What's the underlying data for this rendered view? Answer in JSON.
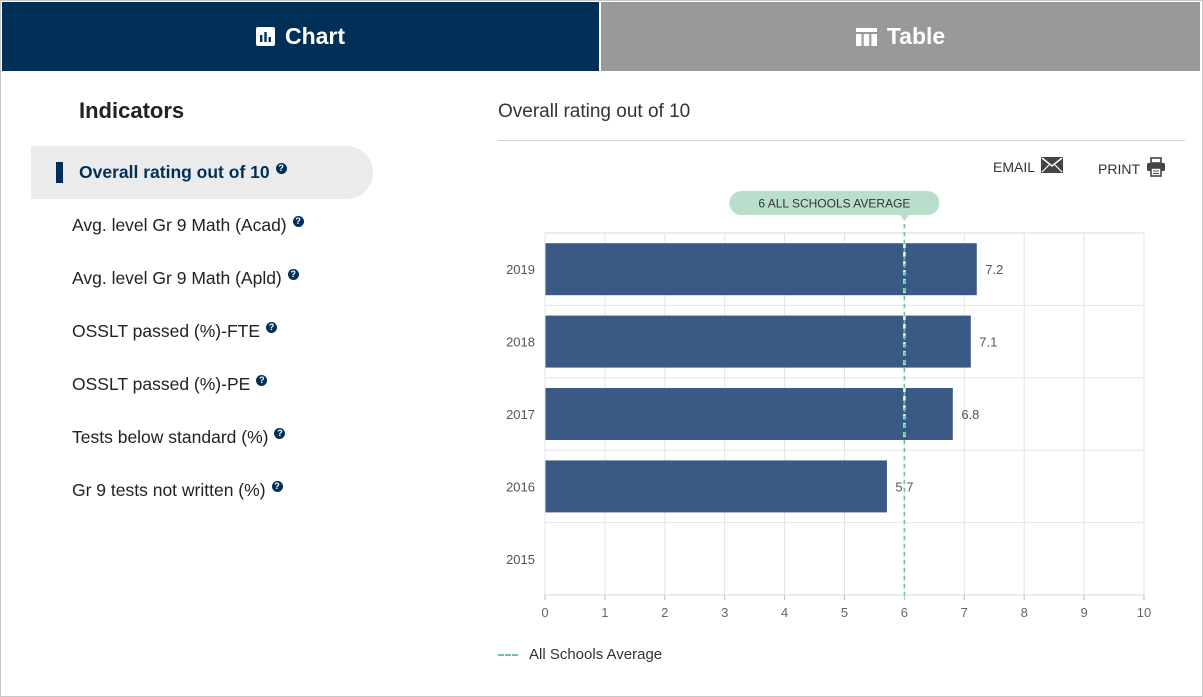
{
  "tabs": {
    "chart": {
      "label": "Chart",
      "icon": "bar-chart-icon"
    },
    "table": {
      "label": "Table",
      "icon": "table-icon"
    }
  },
  "indicators": {
    "title": "Indicators",
    "items": [
      {
        "label": "Overall rating out of 10",
        "active": true
      },
      {
        "label": "Avg. level Gr 9 Math (Acad)",
        "active": false
      },
      {
        "label": "Avg. level Gr 9 Math (Apld)",
        "active": false
      },
      {
        "label": "OSSLT passed (%)-FTE",
        "active": false
      },
      {
        "label": "OSSLT passed (%)-PE",
        "active": false
      },
      {
        "label": "Tests below standard (%)",
        "active": false
      },
      {
        "label": "Gr 9 tests not written (%)",
        "active": false
      }
    ],
    "help_icon": "question-circle-icon"
  },
  "panel": {
    "title": "Overall rating out of 10",
    "email_label": "EMAIL",
    "print_label": "PRINT"
  },
  "colors": {
    "bar": "#3a5a85",
    "average_line": "#6dc4a3",
    "average_badge": "#b9dfcc",
    "active_tab": "#003057",
    "inactive_tab": "#999999"
  },
  "chart_data": {
    "type": "bar",
    "orientation": "horizontal",
    "categories": [
      "2019",
      "2018",
      "2017",
      "2016",
      "2015"
    ],
    "values": [
      7.2,
      7.1,
      6.8,
      5.7,
      null
    ],
    "data_labels": [
      "7.2",
      "7.1",
      "6.8",
      "5.7",
      ""
    ],
    "xlim": [
      0,
      10
    ],
    "x_ticks": [
      0,
      1,
      2,
      3,
      4,
      5,
      6,
      7,
      8,
      9,
      10
    ],
    "grid": true,
    "reference_line": {
      "value": 6,
      "label": "6 ALL SCHOOLS AVERAGE"
    },
    "legend": {
      "position": "bottom-left",
      "entries": [
        "All Schools Average"
      ]
    }
  }
}
